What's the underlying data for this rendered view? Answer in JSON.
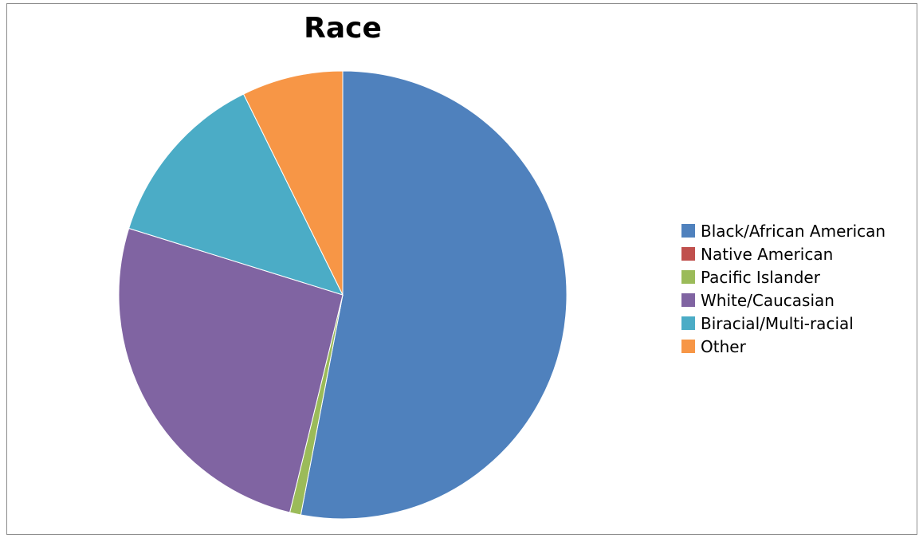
{
  "chart_data": {
    "type": "pie",
    "title": "Race",
    "legend_position": "right",
    "categories": [
      "Black/African American",
      "Native American",
      "Pacific Islander",
      "White/Caucasian",
      "Biracial/Multi-racial",
      "Other"
    ],
    "values": [
      53,
      0,
      0.8,
      26,
      12.9,
      7.3
    ],
    "colors": [
      "#4F81BD",
      "#C0504D",
      "#9BBB59",
      "#8064A2",
      "#4BACC6",
      "#F79646"
    ],
    "start_angle_deg": 0,
    "direction": "clockwise"
  }
}
